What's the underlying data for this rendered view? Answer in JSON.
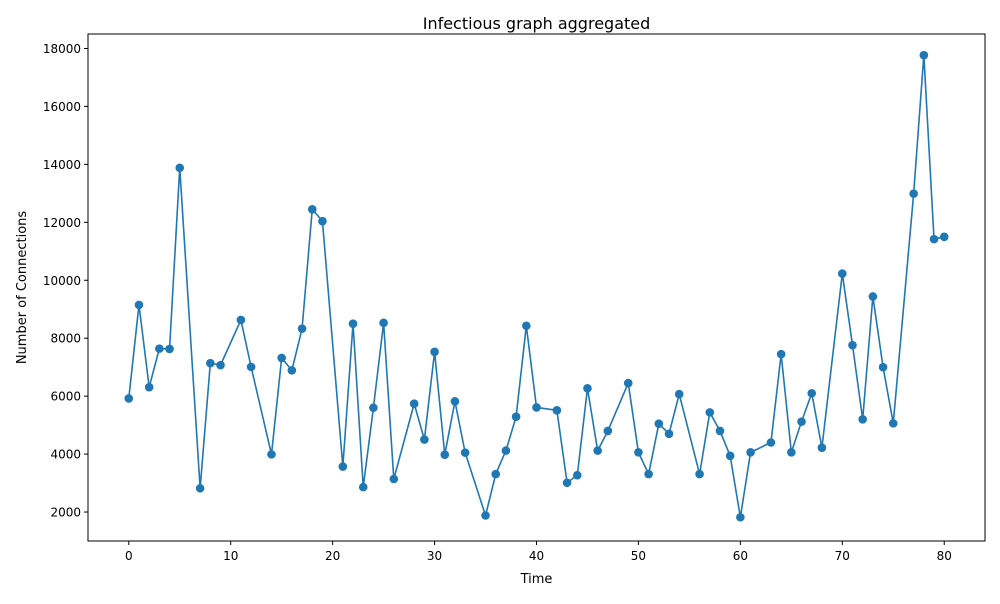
{
  "chart_data": {
    "type": "line",
    "title": "Infectious graph aggregated",
    "xlabel": "Time",
    "ylabel": "Number of Connections",
    "xlim": [
      -4,
      84
    ],
    "ylim": [
      1000,
      18500
    ],
    "xticks": [
      0,
      10,
      20,
      30,
      40,
      50,
      60,
      70,
      80
    ],
    "yticks": [
      2000,
      4000,
      6000,
      8000,
      10000,
      12000,
      14000,
      16000,
      18000
    ],
    "grid": false,
    "color": "#1f77b4",
    "series": [
      {
        "x": [
          0,
          1,
          2,
          3,
          4,
          5,
          7,
          8,
          9,
          11,
          12,
          14,
          15,
          16,
          17,
          18,
          19,
          21,
          22,
          23,
          24,
          25,
          26,
          28,
          29,
          30,
          31,
          32,
          33,
          35,
          36,
          37,
          38,
          39,
          40,
          42,
          43,
          44,
          45,
          46,
          47,
          49,
          50,
          51,
          52,
          53,
          54,
          56,
          57,
          58,
          59,
          60,
          61,
          63,
          64,
          65,
          66,
          67,
          68,
          70,
          71,
          72,
          73,
          74,
          75,
          77,
          78,
          79,
          80
        ],
        "y": [
          5920,
          9150,
          6310,
          7640,
          7630,
          13880,
          2820,
          7140,
          7070,
          8630,
          7010,
          3990,
          7320,
          6890,
          8330,
          12450,
          12040,
          3570,
          8500,
          2860,
          5600,
          8530,
          3140,
          5740,
          4500,
          7530,
          3980,
          5820,
          4050,
          1880,
          3310,
          4120,
          5290,
          8430,
          5610,
          5510,
          3010,
          3270,
          6270,
          4120,
          4800,
          6450,
          4060,
          3310,
          5050,
          4700,
          6070,
          3310,
          5440,
          4800,
          3940,
          1820,
          4060,
          4400,
          7450,
          4060,
          5120,
          6100,
          4220,
          10230,
          7760,
          5200,
          9440,
          7000,
          5060,
          12990,
          17770,
          11420,
          11500
        ]
      }
    ]
  }
}
